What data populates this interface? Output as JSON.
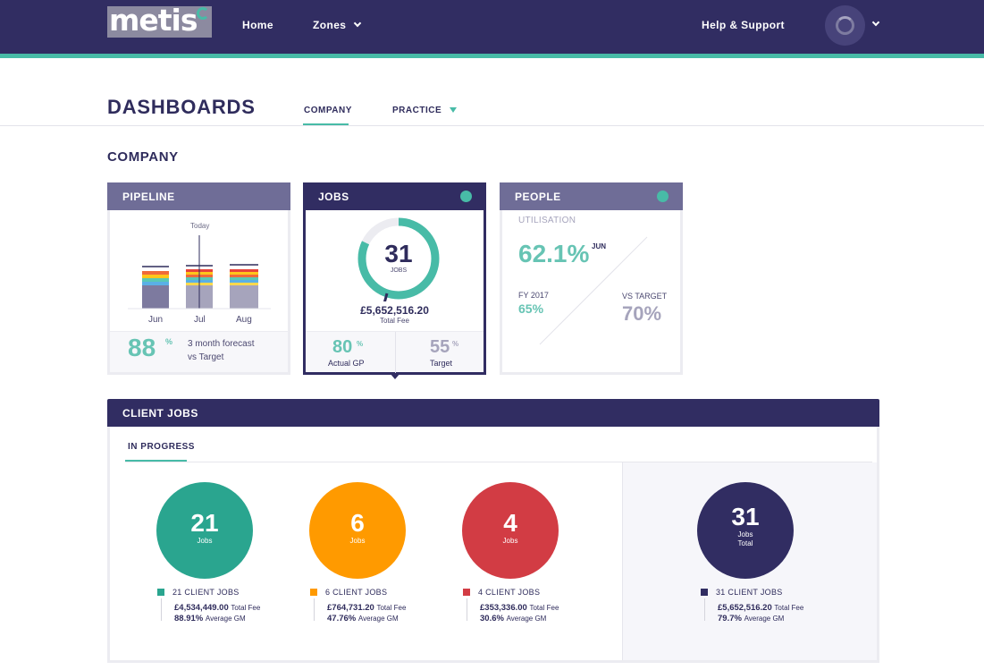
{
  "nav": {
    "logo_text": "metis",
    "home": "Home",
    "zones": "Zones",
    "help": "Help & Support"
  },
  "page": {
    "title": "DASHBOARDS",
    "tabs": {
      "company": "COMPANY",
      "practice": "PRACTICE"
    },
    "section_title": "COMPANY"
  },
  "pipeline": {
    "title": "PIPELINE",
    "today_label": "Today",
    "months": [
      "Jun",
      "Jul",
      "Aug"
    ],
    "forecast_value": "88",
    "forecast_unit": "%",
    "forecast_text_line1": "3 month forecast",
    "forecast_text_line2": "vs Target"
  },
  "jobs": {
    "title": "JOBS",
    "count": "31",
    "count_label": "JOBS",
    "total_fee": "£5,652,516.20",
    "total_fee_label": "Total Fee",
    "actual_gp_value": "80",
    "actual_gp_unit": "%",
    "actual_gp_label": "Actual GP",
    "target_value": "55",
    "target_unit": "%",
    "target_label": "Target",
    "donut_progress": 0.82
  },
  "people": {
    "title": "PEOPLE",
    "utilisation_label": "UTILISATION",
    "utilisation_value": "62.1%",
    "utilisation_month": "JUN",
    "fy_label": "FY 2017",
    "fy_value": "65%",
    "vs_target_label": "VS TARGET",
    "vs_target_value": "70%"
  },
  "client_jobs": {
    "title": "CLIENT JOBS",
    "tab": "IN PROGRESS",
    "groups": [
      {
        "count": "21",
        "sub": "Jobs",
        "legend": "21 CLIENT JOBS",
        "fee": "£4,534,449.00",
        "fee_label": "Total Fee",
        "gm": "88.91%",
        "gm_label": "Average GM",
        "color": "#2aa58f"
      },
      {
        "count": "6",
        "sub": "Jobs",
        "legend": "6 CLIENT JOBS",
        "fee": "£764,731.20",
        "fee_label": "Total Fee",
        "gm": "47.76%",
        "gm_label": "Average GM",
        "color": "#ff9a00"
      },
      {
        "count": "4",
        "sub": "Jobs",
        "legend": "4 CLIENT JOBS",
        "fee": "£353,336.00",
        "fee_label": "Total Fee",
        "gm": "30.6%",
        "gm_label": "Average GM",
        "color": "#d23c44"
      }
    ],
    "total": {
      "count": "31",
      "sub1": "Jobs",
      "sub2": "Total",
      "legend": "31 CLIENT JOBS",
      "fee": "£5,652,516.20",
      "fee_label": "Total Fee",
      "gm": "79.7%",
      "gm_label": "Average GM",
      "color": "#312d62"
    }
  },
  "colors": {
    "brand": "#312d62",
    "accent": "#48bba7"
  }
}
